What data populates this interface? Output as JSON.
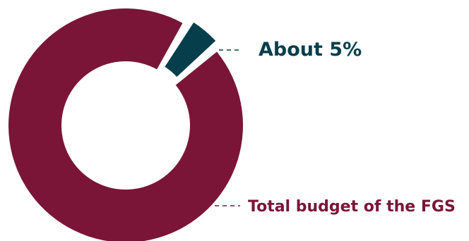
{
  "chart_data": {
    "type": "pie",
    "donut": true,
    "slices": [
      {
        "label": "Total budget of the FGS",
        "value": 95,
        "color": "#7a1537"
      },
      {
        "label": "About 5%",
        "value": 5,
        "color": "#063e4b",
        "exploded": true
      }
    ],
    "legend": "none",
    "grid": false
  }
}
